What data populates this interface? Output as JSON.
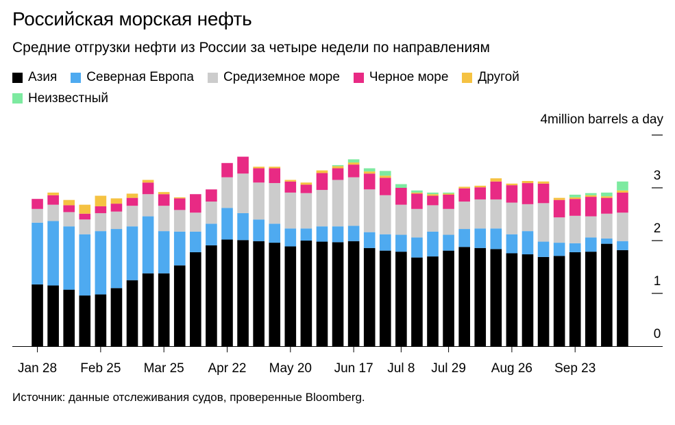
{
  "header": {
    "title": "Российская морская нефть",
    "subtitle": "Средние отгрузки нефти из России за четыре недели по направлениям"
  },
  "footer": {
    "source": "Источник: данные отслеживания судов, проверенные Bloomberg."
  },
  "chart_data": {
    "type": "bar",
    "stacked": true,
    "unit_label": "4million barrels a day",
    "ylim": [
      0,
      4
    ],
    "y_ticks": [
      {
        "value": 0,
        "label": "0"
      },
      {
        "value": 1,
        "label": "1"
      },
      {
        "value": 2,
        "label": "2"
      },
      {
        "value": 3,
        "label": "3"
      },
      {
        "value": 4,
        "label": ""
      }
    ],
    "x_tick_labels": [
      {
        "index": 0,
        "label": "Jan 28"
      },
      {
        "index": 4,
        "label": "Feb 25"
      },
      {
        "index": 8,
        "label": "Mar 25"
      },
      {
        "index": 12,
        "label": "Apr 22"
      },
      {
        "index": 16,
        "label": "May 20"
      },
      {
        "index": 20,
        "label": "Jun 17"
      },
      {
        "index": 23,
        "label": "Jul 8"
      },
      {
        "index": 26,
        "label": "Jul 29"
      },
      {
        "index": 30,
        "label": "Aug 26"
      },
      {
        "index": 34,
        "label": "Sep 23"
      }
    ],
    "legend_placement": "top-left",
    "categories": [
      "Jan 28",
      "Feb 4",
      "Feb 11",
      "Feb 18",
      "Feb 25",
      "Mar 4",
      "Mar 11",
      "Mar 18",
      "Mar 25",
      "Apr 1",
      "Apr 8",
      "Apr 15",
      "Apr 22",
      "Apr 29",
      "May 6",
      "May 13",
      "May 20",
      "May 27",
      "Jun 3",
      "Jun 10",
      "Jun 17",
      "Jun 24",
      "Jul 1",
      "Jul 8",
      "Jul 15",
      "Jul 22",
      "Jul 29",
      "Aug 5",
      "Aug 12",
      "Aug 19",
      "Aug 26",
      "Sep 2",
      "Sep 9",
      "Sep 16",
      "Sep 23",
      "Sep 30",
      "Oct 7",
      "Oct 14"
    ],
    "series": [
      {
        "name": "Азия",
        "color": "#000000",
        "values": [
          1.17,
          1.15,
          1.07,
          0.96,
          0.98,
          1.1,
          1.25,
          1.38,
          1.38,
          1.53,
          1.78,
          1.91,
          2.02,
          2.01,
          1.99,
          1.96,
          1.89,
          2.0,
          1.98,
          1.97,
          1.99,
          1.86,
          1.81,
          1.79,
          1.68,
          1.7,
          1.81,
          1.88,
          1.86,
          1.84,
          1.76,
          1.74,
          1.69,
          1.71,
          1.78,
          1.79,
          1.94,
          1.82
        ]
      },
      {
        "name": "Северная Европа",
        "color": "#4eaaf0",
        "values": [
          1.17,
          1.22,
          1.2,
          1.16,
          1.2,
          1.12,
          1.02,
          1.08,
          0.8,
          0.64,
          0.39,
          0.41,
          0.6,
          0.51,
          0.41,
          0.36,
          0.34,
          0.23,
          0.29,
          0.3,
          0.29,
          0.3,
          0.31,
          0.32,
          0.38,
          0.47,
          0.3,
          0.34,
          0.37,
          0.39,
          0.36,
          0.44,
          0.29,
          0.25,
          0.17,
          0.27,
          0.1,
          0.17
        ]
      },
      {
        "name": "Средиземное море",
        "color": "#cccccc",
        "values": [
          0.26,
          0.31,
          0.27,
          0.28,
          0.34,
          0.33,
          0.39,
          0.42,
          0.48,
          0.41,
          0.36,
          0.42,
          0.58,
          0.75,
          0.7,
          0.77,
          0.68,
          0.67,
          0.69,
          0.88,
          0.92,
          0.81,
          0.74,
          0.57,
          0.54,
          0.5,
          0.49,
          0.52,
          0.55,
          0.55,
          0.6,
          0.51,
          0.73,
          0.48,
          0.52,
          0.4,
          0.47,
          0.54
        ]
      },
      {
        "name": "Черное море",
        "color": "#e82a84",
        "values": [
          0.19,
          0.18,
          0.13,
          0.11,
          0.13,
          0.15,
          0.15,
          0.22,
          0.22,
          0.22,
          0.35,
          0.23,
          0.27,
          0.32,
          0.27,
          0.28,
          0.21,
          0.16,
          0.32,
          0.22,
          0.24,
          0.3,
          0.33,
          0.32,
          0.29,
          0.18,
          0.27,
          0.25,
          0.23,
          0.34,
          0.33,
          0.4,
          0.37,
          0.33,
          0.32,
          0.37,
          0.3,
          0.38
        ]
      },
      {
        "name": "Другой",
        "color": "#f5c242",
        "values": [
          0.0,
          0.05,
          0.1,
          0.17,
          0.2,
          0.1,
          0.08,
          0.05,
          0.04,
          0.02,
          0.0,
          0.0,
          0.0,
          0.0,
          0.03,
          0.03,
          0.03,
          0.04,
          0.05,
          0.04,
          0.04,
          0.04,
          0.04,
          0.0,
          0.02,
          0.03,
          0.02,
          0.03,
          0.03,
          0.06,
          0.03,
          0.04,
          0.04,
          0.04,
          0.03,
          0.03,
          0.03,
          0.04
        ]
      },
      {
        "name": "Неизвестный",
        "color": "#7deaa0",
        "values": [
          0.0,
          0.0,
          0.0,
          0.0,
          0.0,
          0.0,
          0.0,
          0.0,
          0.0,
          0.0,
          0.0,
          0.0,
          0.0,
          0.0,
          0.0,
          0.0,
          0.0,
          0.0,
          0.0,
          0.02,
          0.06,
          0.06,
          0.09,
          0.07,
          0.04,
          0.03,
          0.02,
          0.0,
          0.0,
          0.0,
          0.0,
          0.0,
          0.0,
          0.0,
          0.05,
          0.04,
          0.07,
          0.17
        ]
      }
    ]
  }
}
